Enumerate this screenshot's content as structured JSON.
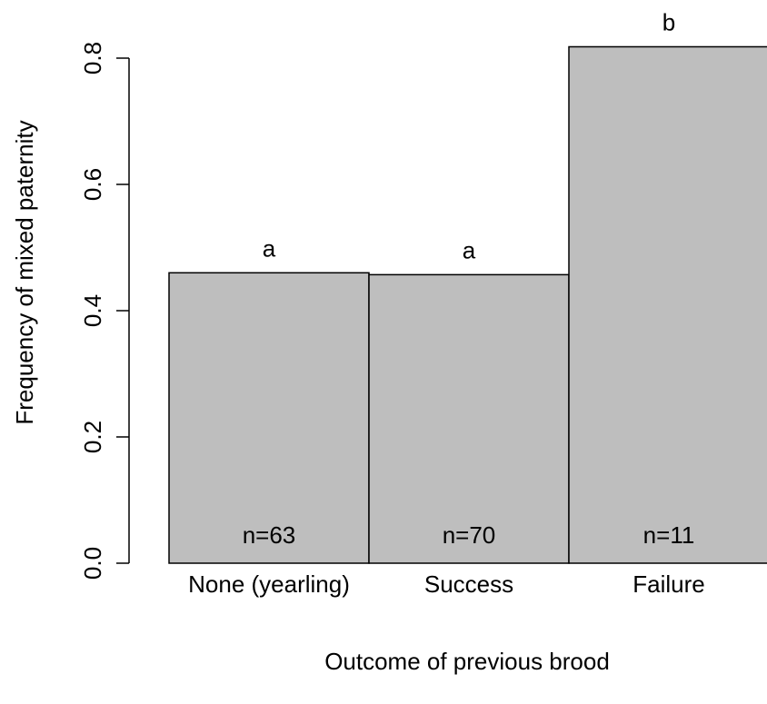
{
  "chart_data": {
    "type": "bar",
    "categories": [
      "None (yearling)",
      "Success",
      "Failure"
    ],
    "values": [
      0.46,
      0.457,
      0.818
    ],
    "significance_letters": [
      "a",
      "a",
      "b"
    ],
    "sample_sizes": [
      "n=63",
      "n=70",
      "n=11"
    ],
    "xlabel": "Outcome of previous brood",
    "ylabel": "Frequency of mixed paternity",
    "ylim": [
      0,
      0.8
    ],
    "yticks": [
      "0.0",
      "0.2",
      "0.4",
      "0.6",
      "0.8"
    ],
    "bar_color": "#bebebe",
    "grid": false,
    "legend": "none"
  }
}
